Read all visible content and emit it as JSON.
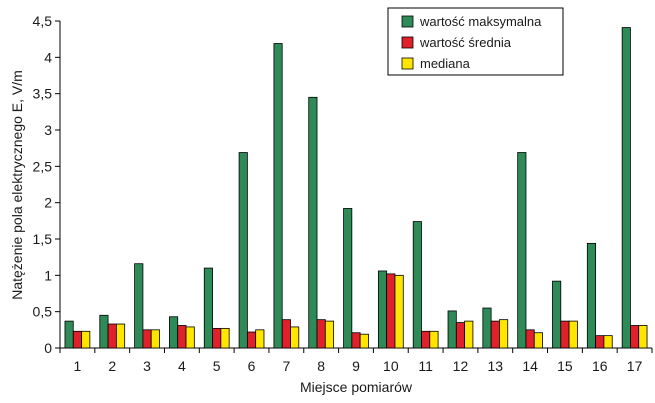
{
  "chart_data": {
    "type": "bar",
    "title": "",
    "xlabel": "Miejsce pomiarów",
    "ylabel": "Natężenie pola elektrycznego E, V/m",
    "ylim": [
      0,
      4.5
    ],
    "yticks": [
      "0",
      "0,5",
      "1",
      "1,5",
      "2",
      "2,5",
      "3",
      "3,5",
      "4",
      "4,5"
    ],
    "categories": [
      "1",
      "2",
      "3",
      "4",
      "5",
      "6",
      "7",
      "8",
      "9",
      "10",
      "11",
      "12",
      "13",
      "14",
      "15",
      "16",
      "17"
    ],
    "grid": false,
    "legend_position": "top-right",
    "series": [
      {
        "name": "wartość maksymalna",
        "color": "#2e8b57",
        "values": [
          0.37,
          0.45,
          1.16,
          0.43,
          1.1,
          2.69,
          4.19,
          3.45,
          1.92,
          1.06,
          1.74,
          0.51,
          0.55,
          2.69,
          0.92,
          1.44,
          4.41
        ]
      },
      {
        "name": "wartość średnia",
        "color": "#e0202a",
        "values": [
          0.23,
          0.33,
          0.25,
          0.31,
          0.27,
          0.22,
          0.39,
          0.39,
          0.21,
          1.02,
          0.23,
          0.35,
          0.37,
          0.25,
          0.37,
          0.17,
          0.31
        ]
      },
      {
        "name": "mediana",
        "color": "#ffe600",
        "values": [
          0.23,
          0.33,
          0.25,
          0.29,
          0.27,
          0.25,
          0.29,
          0.37,
          0.19,
          1.0,
          0.23,
          0.37,
          0.39,
          0.21,
          0.37,
          0.17,
          0.31
        ]
      }
    ]
  }
}
